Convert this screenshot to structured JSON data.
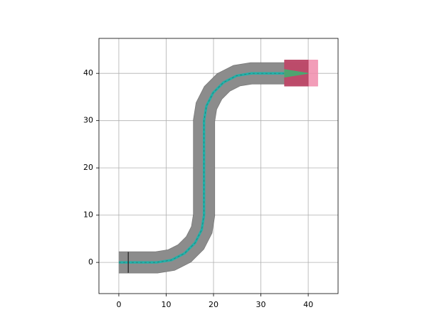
{
  "chart_data": {
    "type": "layout",
    "xlim": [
      -4.2,
      46.3
    ],
    "ylim": [
      -6.6,
      47.4
    ],
    "xticks": [
      0,
      10,
      20,
      30,
      40
    ],
    "yticks": [
      0,
      10,
      20,
      30,
      40
    ],
    "grid": true,
    "series": [
      {
        "x": [
          0,
          8,
          11.09,
          13.88,
          16.09,
          17.51,
          18,
          18,
          18.49,
          19.91,
          22.12,
          24.91,
          28,
          35,
          40
        ],
        "y": [
          0,
          0,
          0.49,
          1.91,
          4.12,
          6.91,
          10,
          30,
          33.09,
          35.88,
          38.09,
          39.51,
          40,
          40,
          40
        ],
        "color": "#20b2aa",
        "width": 0.5,
        "cladding_width": 4.4,
        "cladding_color": "#8c8c8c"
      }
    ],
    "polygons": [
      {
        "x": [
          35,
          42,
          42,
          35
        ],
        "y": [
          37.3,
          37.3,
          42.8,
          42.8
        ],
        "color": "#f08cab"
      },
      {
        "x": [
          35,
          40,
          40,
          35
        ],
        "y": [
          37.3,
          37.3,
          42.8,
          42.8
        ],
        "color": "#b5405f"
      },
      {
        "x": [
          35,
          35,
          40
        ],
        "y": [
          39.2,
          40.8,
          40
        ],
        "color": "#3cb371"
      },
      {
        "x": [
          2,
          2
        ],
        "y": [
          -2.2,
          2.2
        ],
        "color": "#333333"
      }
    ]
  }
}
